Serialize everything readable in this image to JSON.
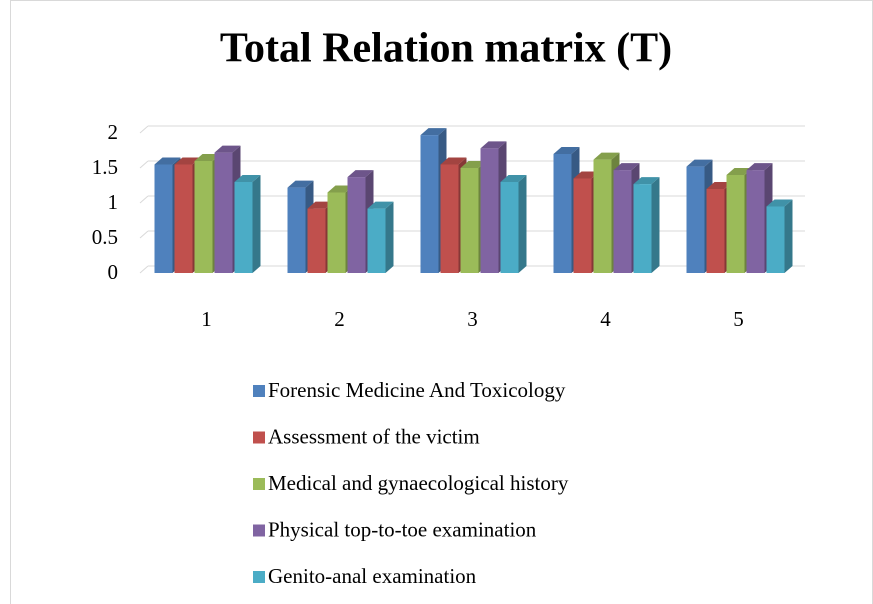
{
  "chart_data": {
    "type": "bar3d",
    "title": "Total Relation matrix (T)",
    "categories": [
      "1",
      "2",
      "3",
      "4",
      "5"
    ],
    "series": [
      {
        "name": "Forensic Medicine And Toxicology",
        "color": "#4f81bd",
        "values": [
          1.55,
          1.22,
          1.97,
          1.7,
          1.52
        ]
      },
      {
        "name": "Assessment of the victim",
        "color": "#c0504d",
        "values": [
          1.55,
          0.92,
          1.55,
          1.35,
          1.2
        ]
      },
      {
        "name": "Medical and gynaecological history",
        "color": "#9bbb59",
        "values": [
          1.6,
          1.15,
          1.5,
          1.62,
          1.4
        ]
      },
      {
        "name": "Physical top-to-toe examination",
        "color": "#8064a2",
        "values": [
          1.72,
          1.37,
          1.78,
          1.47,
          1.47
        ]
      },
      {
        "name": "Genito-anal examination",
        "color": "#4bacc6",
        "values": [
          1.3,
          0.92,
          1.3,
          1.27,
          0.95
        ]
      }
    ],
    "ylim": [
      0,
      2
    ],
    "yticks": [
      0,
      0.5,
      1,
      1.5,
      2
    ],
    "grid": true,
    "legend": "bottom"
  }
}
